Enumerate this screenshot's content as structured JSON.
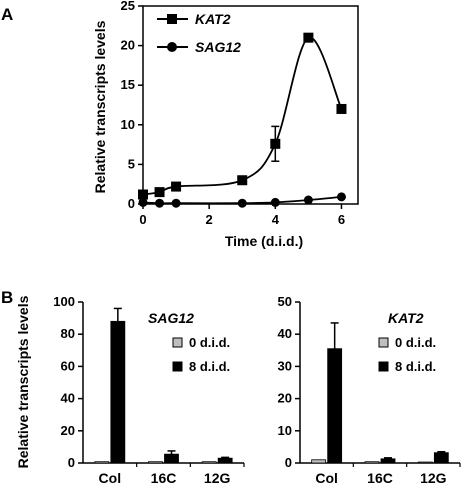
{
  "chart_data": [
    {
      "panel": "A",
      "type": "line",
      "ylabel": "Relative transcripts levels",
      "xlabel": "Time (d.i.d.)",
      "xlim": [
        0,
        6.5
      ],
      "ylim": [
        0,
        25
      ],
      "xticks": [
        "0",
        "2",
        "4",
        "6"
      ],
      "yticks": [
        "0",
        "5",
        "10",
        "15",
        "20",
        "25"
      ],
      "legend_position": "top-left",
      "series": [
        {
          "name": "KAT2",
          "marker": "square",
          "x": [
            0,
            0.5,
            1,
            3,
            4,
            5,
            6
          ],
          "y": [
            1.2,
            1.5,
            2.2,
            3.0,
            7.6,
            21.0,
            12.0
          ],
          "err": [
            0.2,
            0.2,
            0.3,
            0.3,
            2.2,
            0.5,
            0.4
          ]
        },
        {
          "name": "SAG12",
          "marker": "circle",
          "x": [
            0,
            0.5,
            1,
            3,
            4,
            5,
            6
          ],
          "y": [
            0.2,
            0.1,
            0.1,
            0.1,
            0.2,
            0.5,
            0.9
          ],
          "err": [
            0,
            0,
            0,
            0,
            0,
            0,
            0
          ]
        }
      ]
    },
    {
      "panel": "B",
      "type": "bar",
      "ylabel": "Relative transcripts levels",
      "gene": "SAG12",
      "categories": [
        "Col",
        "16C",
        "12G"
      ],
      "ylim": [
        0,
        100
      ],
      "yticks": [
        "0",
        "20",
        "40",
        "60",
        "80",
        "100"
      ],
      "legend_position": "top-right",
      "series": [
        {
          "name": "0 d.i.d.",
          "values": [
            0.8,
            0.8,
            0.8
          ],
          "err": [
            0,
            0,
            0
          ]
        },
        {
          "name": "8 d.i.d.",
          "values": [
            88,
            5.5,
            3.0
          ],
          "err": [
            8,
            2,
            0.5
          ]
        }
      ]
    },
    {
      "panel": "B",
      "type": "bar",
      "gene": "KAT2",
      "categories": [
        "Col",
        "16C",
        "12G"
      ],
      "ylim": [
        0,
        50
      ],
      "yticks": [
        "0",
        "10",
        "20",
        "30",
        "40",
        "50"
      ],
      "legend_position": "top-right",
      "series": [
        {
          "name": "0 d.i.d.",
          "values": [
            1.0,
            0.4,
            0.3
          ],
          "err": [
            0,
            0,
            0
          ]
        },
        {
          "name": "8 d.i.d.",
          "values": [
            35.5,
            1.3,
            3.2
          ],
          "err": [
            8,
            0.3,
            0.3
          ]
        }
      ]
    }
  ],
  "colors": {
    "axis": "#000000",
    "bar_0did": "#bfbfbf",
    "bar_8did": "#000000",
    "line": "#000000"
  }
}
